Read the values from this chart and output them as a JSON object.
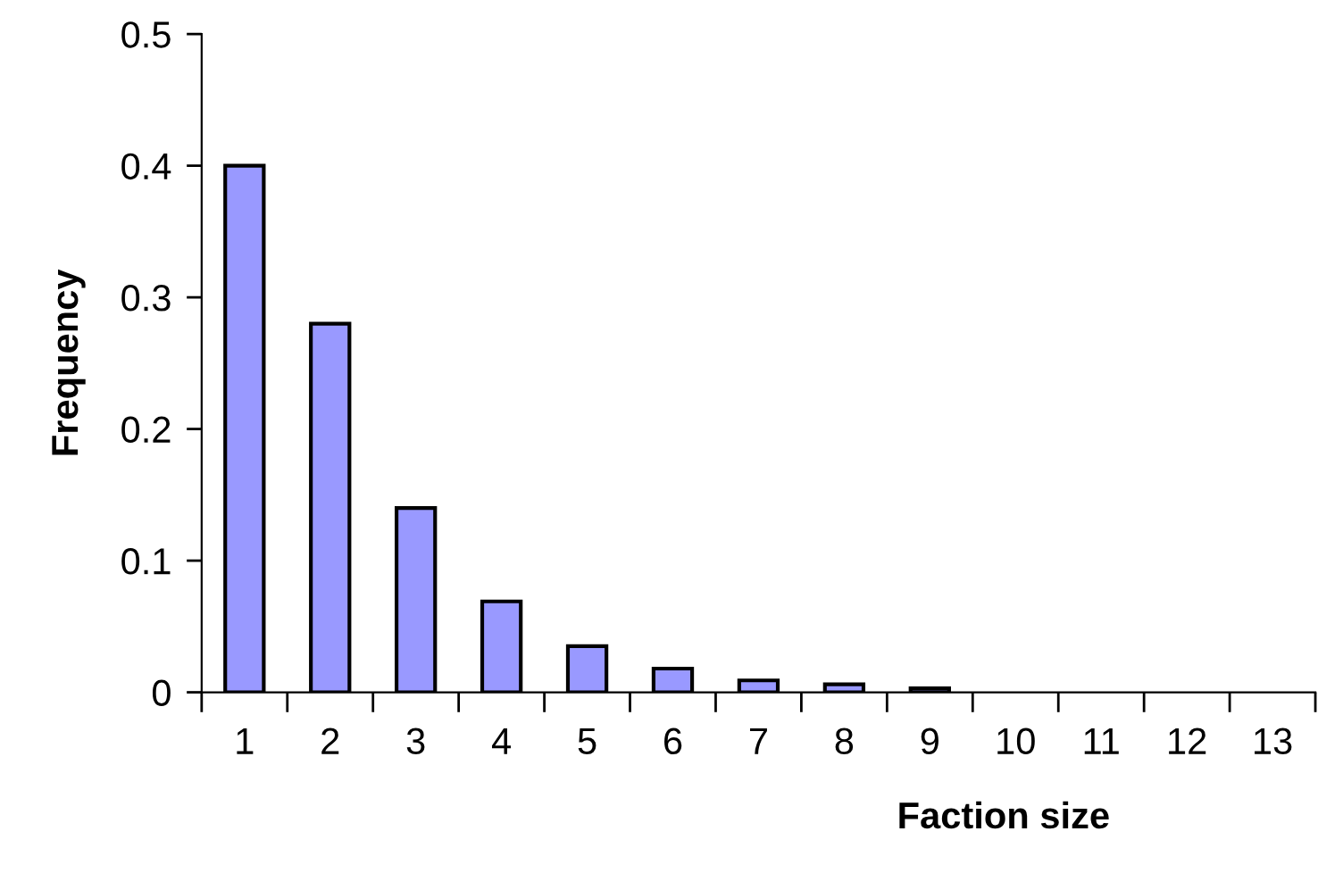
{
  "chart_data": {
    "type": "bar",
    "xlabel": "Faction size",
    "ylabel": "Frequency",
    "categories": [
      "1",
      "2",
      "3",
      "4",
      "5",
      "6",
      "7",
      "8",
      "9",
      "10",
      "11",
      "12",
      "13"
    ],
    "values": [
      0.4,
      0.28,
      0.14,
      0.069,
      0.035,
      0.018,
      0.009,
      0.006,
      0.003,
      0,
      0,
      0,
      0
    ],
    "color": "#9999ff",
    "ylim": [
      0,
      0.5
    ],
    "yticks": [
      0,
      0.1,
      0.2,
      0.3,
      0.4,
      0.5
    ],
    "grid": false
  }
}
